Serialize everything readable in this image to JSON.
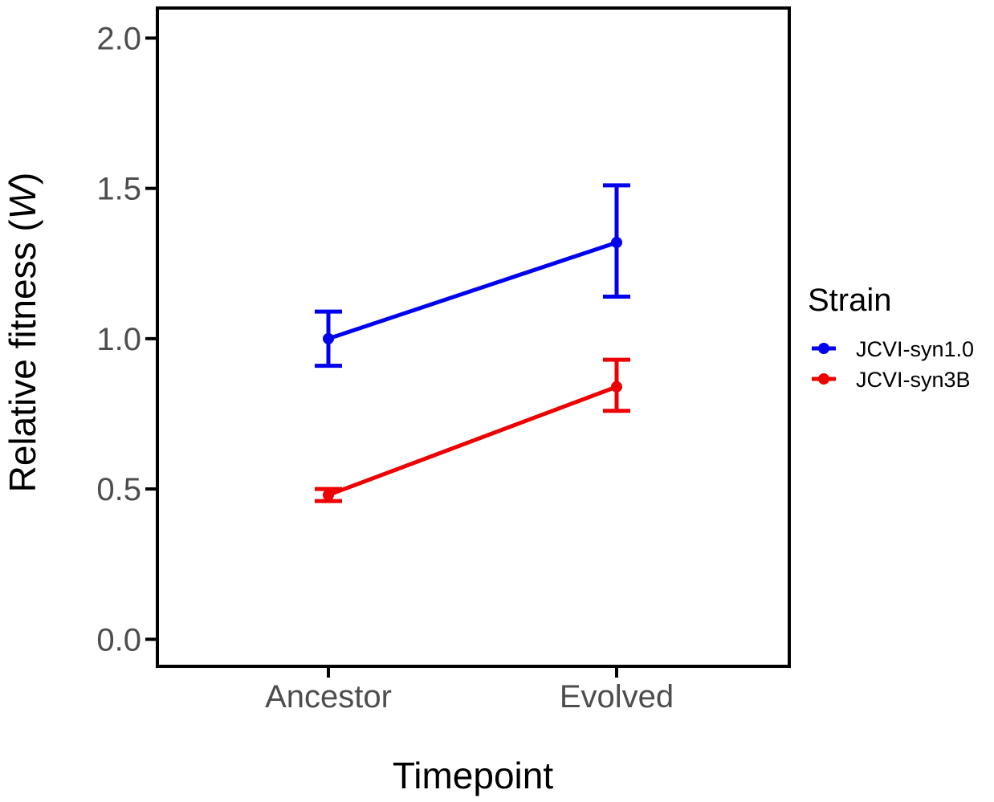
{
  "chart_data": {
    "type": "line",
    "xlabel": "Timepoint",
    "ylabel_prefix": "Relative fitness (",
    "ylabel_var": "W",
    "ylabel_suffix": ")",
    "categories": [
      "Ancestor",
      "Evolved"
    ],
    "ylim": [
      -0.09,
      2.1
    ],
    "yticks": [
      0.0,
      0.5,
      1.0,
      1.5,
      2.0
    ],
    "ytick_labels": [
      "0.0",
      "0.5",
      "1.0",
      "1.5",
      "2.0"
    ],
    "grid": false,
    "legend": {
      "title": "Strain",
      "placement": "right"
    },
    "series": [
      {
        "name": "JCVI-syn1.0",
        "color": "#0000ee",
        "values": [
          1.0,
          1.32
        ],
        "err_low": [
          0.91,
          1.14
        ],
        "err_high": [
          1.09,
          1.51
        ]
      },
      {
        "name": "JCVI-syn3B",
        "color": "#ee0000",
        "values": [
          0.48,
          0.84
        ],
        "err_low": [
          0.46,
          0.76
        ],
        "err_high": [
          0.5,
          0.93
        ]
      }
    ]
  }
}
